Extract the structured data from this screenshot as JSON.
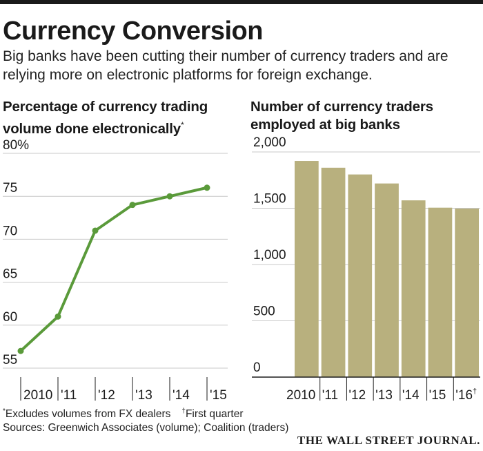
{
  "title": "Currency Conversion",
  "subtitle": "Big banks have been cutting their number of currency traders and are relying more on electronic platforms for foreign exchange.",
  "chart_data": [
    {
      "type": "line",
      "title": "Percentage of currency trading volume done electronically",
      "title_note_mark": "*",
      "categories": [
        "2010",
        "'11",
        "'12",
        "'13",
        "'14",
        "'15"
      ],
      "values": [
        57,
        61,
        71,
        74,
        75,
        76
      ],
      "ylim": [
        55,
        80
      ],
      "yticks": [
        "80%",
        "75",
        "70",
        "65",
        "60",
        "55"
      ],
      "xlabel": "",
      "ylabel": "",
      "color": "#5a9a3a",
      "grid": true
    },
    {
      "type": "bar",
      "title": "Number of currency traders employed at big banks",
      "categories": [
        "2010",
        "'11",
        "'12",
        "'13",
        "'14",
        "'15",
        "'16"
      ],
      "category_note_marks": [
        "",
        "",
        "",
        "",
        "",
        "",
        "†"
      ],
      "values": [
        1920,
        1860,
        1800,
        1720,
        1570,
        1505,
        1497
      ],
      "ylim": [
        0,
        2000
      ],
      "yticks": [
        "2,000",
        "1,500",
        "1,000",
        "500",
        "0"
      ],
      "xlabel": "",
      "ylabel": "",
      "color": "#b8b07e",
      "grid": true
    }
  ],
  "footnotes": {
    "excludes_mark": "*",
    "excludes": "Excludes volumes from FX dealers",
    "first_quarter_mark": "†",
    "first_quarter": "First quarter",
    "sources": "Sources: Greenwich Associates (volume); Coalition (traders)"
  },
  "brand": "THE WALL STREET JOURNAL."
}
